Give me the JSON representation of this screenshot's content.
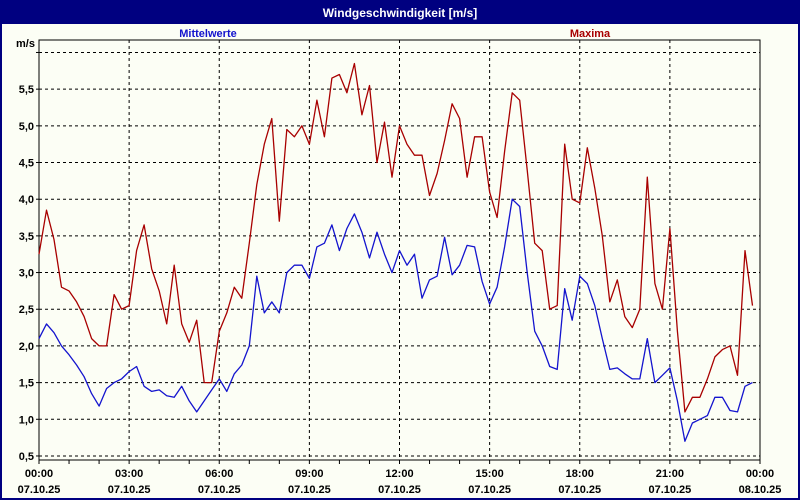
{
  "header": {
    "title": "Windgeschwindigkeit [m/s]"
  },
  "legend": {
    "mean_label": "Mittelwerte",
    "max_label": "Maxima"
  },
  "colors": {
    "frame": "#000080",
    "header_bg": "#000080",
    "header_text": "#FFFFFF",
    "background": "#FCFEF5",
    "plot_border": "#000000",
    "grid": "#000000",
    "mean_series": "#1414CE",
    "max_series": "#A80000"
  },
  "y_axis": {
    "unit_label": "m/s",
    "gridline_values": [
      0.5,
      1.0,
      1.5,
      2.0,
      2.5,
      3.0,
      3.5,
      4.0,
      4.5,
      5.0,
      5.5,
      6.0
    ],
    "tick_labels": [
      "0,5",
      "1,0",
      "1,5",
      "2,0",
      "2,5",
      "3,0",
      "3,5",
      "4,0",
      "4,5",
      "5,0",
      "5,5"
    ]
  },
  "x_axis": {
    "ticks": [
      {
        "hour": 0,
        "time": "00:00",
        "date": "07.10.25"
      },
      {
        "hour": 3,
        "time": "03:00",
        "date": "07.10.25"
      },
      {
        "hour": 6,
        "time": "06:00",
        "date": "07.10.25"
      },
      {
        "hour": 9,
        "time": "09:00",
        "date": "07.10.25"
      },
      {
        "hour": 12,
        "time": "12:00",
        "date": "07.10.25"
      },
      {
        "hour": 15,
        "time": "15:00",
        "date": "07.10.25"
      },
      {
        "hour": 18,
        "time": "18:00",
        "date": "07.10.25"
      },
      {
        "hour": 21,
        "time": "21:00",
        "date": "07.10.25"
      },
      {
        "hour": 24,
        "time": "00:00",
        "date": "08.10.25"
      }
    ],
    "minor_tick_every_hours": 1
  },
  "chart_data": {
    "type": "line",
    "title": "Windgeschwindigkeit [m/s]",
    "ylabel": "m/s",
    "ylim": [
      0.445,
      6.17
    ],
    "xlim_hours": [
      0,
      24
    ],
    "grid": true,
    "legend_position": "top",
    "x": {
      "start_hour": 0,
      "step_minutes": 15,
      "points": 96
    },
    "series": [
      {
        "name": "Mittelwerte",
        "color": "#1414CE",
        "values": [
          2.1,
          2.3,
          2.18,
          2.0,
          1.88,
          1.74,
          1.58,
          1.35,
          1.18,
          1.42,
          1.5,
          1.55,
          1.65,
          1.72,
          1.45,
          1.38,
          1.4,
          1.32,
          1.3,
          1.45,
          1.25,
          1.1,
          1.25,
          1.4,
          1.55,
          1.38,
          1.62,
          1.74,
          2.0,
          2.95,
          2.45,
          2.6,
          2.45,
          3.0,
          3.1,
          3.1,
          2.92,
          3.35,
          3.4,
          3.65,
          3.3,
          3.6,
          3.8,
          3.55,
          3.2,
          3.55,
          3.25,
          3.0,
          3.3,
          3.1,
          3.25,
          2.65,
          2.9,
          2.95,
          3.48,
          2.97,
          3.1,
          3.37,
          3.35,
          2.88,
          2.57,
          2.8,
          3.35,
          4.0,
          3.9,
          3.0,
          2.2,
          2.0,
          1.72,
          1.68,
          2.78,
          2.35,
          2.95,
          2.85,
          2.55,
          2.1,
          1.68,
          1.7,
          1.62,
          1.55,
          1.55,
          2.1,
          1.5,
          1.6,
          1.7,
          1.25,
          0.7,
          0.95,
          1.0,
          1.05,
          1.3,
          1.3,
          1.12,
          1.1,
          1.45,
          1.5
        ]
      },
      {
        "name": "Maxima",
        "color": "#A80000",
        "values": [
          3.25,
          3.85,
          3.45,
          2.8,
          2.75,
          2.6,
          2.4,
          2.1,
          2.0,
          2.0,
          2.7,
          2.5,
          2.55,
          3.3,
          3.65,
          3.05,
          2.75,
          2.3,
          3.1,
          2.3,
          2.05,
          2.35,
          1.5,
          1.5,
          2.2,
          2.45,
          2.8,
          2.65,
          3.4,
          4.2,
          4.75,
          5.1,
          3.7,
          4.95,
          4.85,
          5.0,
          4.75,
          5.35,
          4.85,
          5.65,
          5.7,
          5.45,
          5.85,
          5.15,
          5.55,
          4.5,
          5.05,
          4.3,
          5.0,
          4.75,
          4.6,
          4.6,
          4.05,
          4.35,
          4.8,
          5.3,
          5.1,
          4.3,
          4.85,
          4.85,
          4.1,
          3.75,
          4.65,
          5.45,
          5.35,
          4.4,
          3.4,
          3.3,
          2.5,
          2.55,
          4.75,
          4.0,
          3.95,
          4.7,
          4.15,
          3.5,
          2.6,
          2.9,
          2.4,
          2.25,
          2.5,
          4.3,
          2.85,
          2.5,
          3.6,
          2.2,
          1.1,
          1.3,
          1.3,
          1.55,
          1.85,
          1.95,
          2.0,
          1.6,
          3.3,
          2.55
        ]
      }
    ]
  }
}
